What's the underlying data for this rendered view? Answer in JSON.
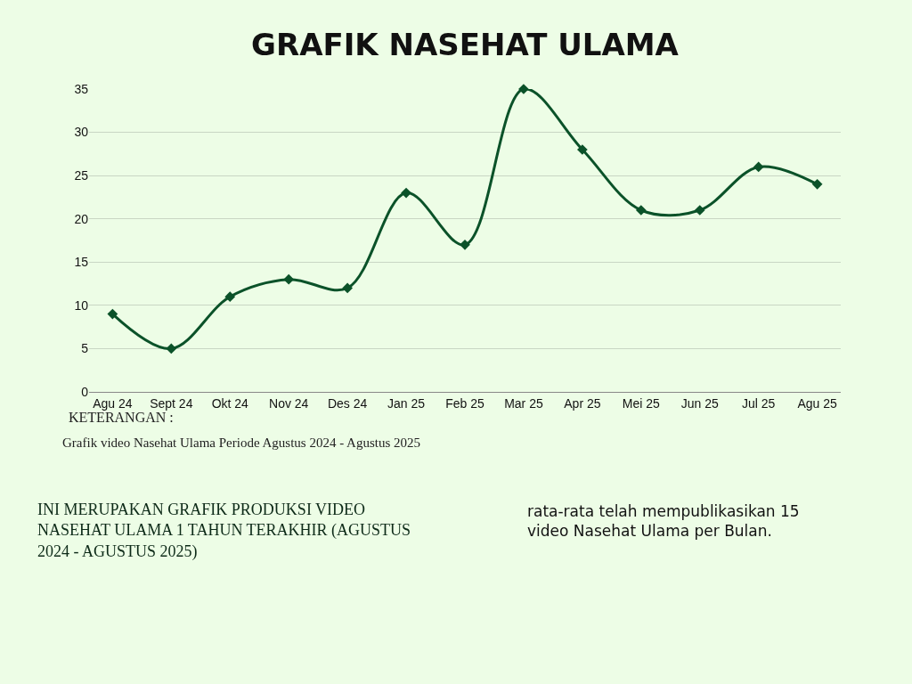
{
  "chart_data": {
    "type": "line",
    "title": "GRAFIK NASEHAT ULAMA",
    "categories": [
      "Agu 24",
      "Sept 24",
      "Okt 24",
      "Nov 24",
      "Des 24",
      "Jan 25",
      "Feb 25",
      "Mar 25",
      "Apr 25",
      "Mei 25",
      "Jun 25",
      "Jul 25",
      "Agu 25"
    ],
    "series": [
      {
        "color": "#0b5229",
        "values": [
          9,
          5,
          11,
          13,
          12,
          23,
          17,
          35,
          28,
          21,
          21,
          26,
          24
        ]
      }
    ],
    "ylim": [
      0,
      35
    ],
    "yticks": [
      0,
      5,
      10,
      15,
      20,
      25,
      30,
      35
    ],
    "grid": "y",
    "legend": false,
    "marker": "diamond",
    "line_style": "solid",
    "annotations": [
      "KETERANGAN :",
      "Grafik video Nasehat Ulama Periode Agustus 2024 - Agustus 2025",
      "INI MERUPAKAN GRAFIK PRODUKSI VIDEO NASEHAT ULAMA 1 TAHUN TERAKHIR (AGUSTUS 2024 - AGUSTUS 2025)",
      "rata-rata telah mempublikasikan 15 video Nasehat Ulama per Bulan."
    ]
  }
}
